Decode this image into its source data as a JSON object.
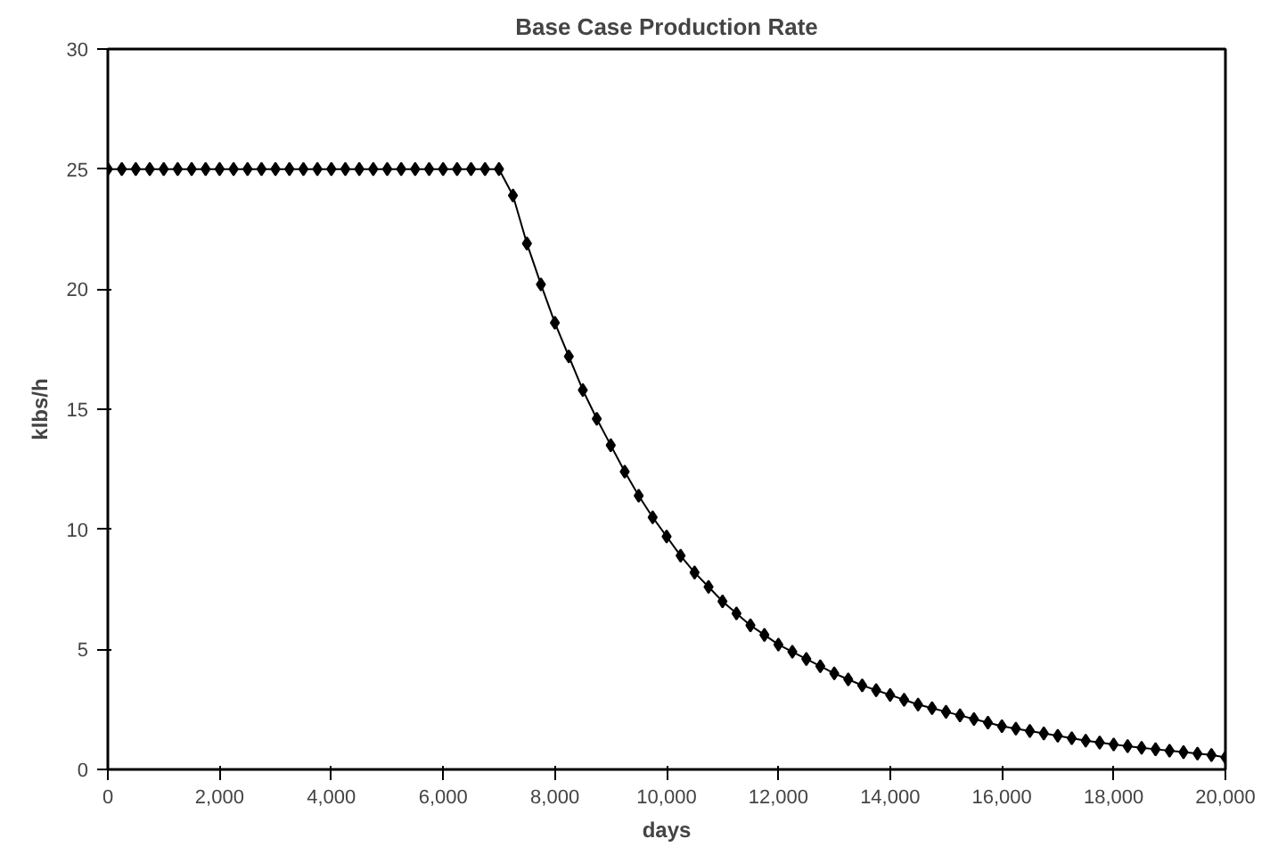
{
  "chart_data": {
    "type": "line",
    "title": "Base Case Production Rate",
    "xlabel": "days",
    "ylabel": "klbs/h",
    "x": [
      0,
      250,
      500,
      750,
      1000,
      1250,
      1500,
      1750,
      2000,
      2250,
      2500,
      2750,
      3000,
      3250,
      3500,
      3750,
      4000,
      4250,
      4500,
      4750,
      5000,
      5250,
      5500,
      5750,
      6000,
      6250,
      6500,
      6750,
      7000,
      7250,
      7500,
      7750,
      8000,
      8250,
      8500,
      8750,
      9000,
      9250,
      9500,
      9750,
      10000,
      10250,
      10500,
      10750,
      11000,
      11250,
      11500,
      11750,
      12000,
      12250,
      12500,
      12750,
      13000,
      13250,
      13500,
      13750,
      14000,
      14250,
      14500,
      14750,
      15000,
      15250,
      15500,
      15750,
      16000,
      16250,
      16500,
      16750,
      17000,
      17250,
      17500,
      17750,
      18000,
      18250,
      18500,
      18750,
      19000,
      19250,
      19500,
      19750,
      20000
    ],
    "series": [
      {
        "color": "#000000",
        "values": [
          25,
          25,
          25,
          25,
          25,
          25,
          25,
          25,
          25,
          25,
          25,
          25,
          25,
          25,
          25,
          25,
          25,
          25,
          25,
          25,
          25,
          25,
          25,
          25,
          25,
          25,
          25,
          25,
          25,
          23.9,
          21.9,
          20.2,
          18.6,
          17.2,
          15.8,
          14.6,
          13.5,
          12.4,
          11.4,
          10.5,
          9.7,
          8.9,
          8.2,
          7.6,
          7.0,
          6.5,
          6.0,
          5.6,
          5.2,
          4.9,
          4.6,
          4.3,
          4.0,
          3.75,
          3.5,
          3.3,
          3.1,
          2.9,
          2.7,
          2.55,
          2.4,
          2.25,
          2.1,
          1.95,
          1.8,
          1.7,
          1.6,
          1.5,
          1.4,
          1.3,
          1.2,
          1.12,
          1.04,
          0.97,
          0.9,
          0.84,
          0.78,
          0.72,
          0.66,
          0.6,
          0.5
        ]
      }
    ],
    "xlim": [
      0,
      20000
    ],
    "ylim": [
      0,
      30
    ],
    "xticks": [
      0,
      {
        "value": 2000,
        "label": "2,000"
      },
      {
        "value": 4000,
        "label": "4,000"
      },
      {
        "value": 6000,
        "label": "6,000"
      },
      {
        "value": 8000,
        "label": "8,000"
      },
      {
        "value": 10000,
        "label": "10,000"
      },
      {
        "value": 12000,
        "label": "12,000"
      },
      {
        "value": 14000,
        "label": "14,000"
      },
      {
        "value": 16000,
        "label": "16,000"
      },
      {
        "value": 18000,
        "label": "18,000"
      },
      {
        "value": 20000,
        "label": "20,000"
      }
    ],
    "yticks": [
      0,
      5,
      10,
      15,
      20,
      25,
      30
    ],
    "marker": "diamond",
    "line_style": "solid",
    "grid": false
  }
}
